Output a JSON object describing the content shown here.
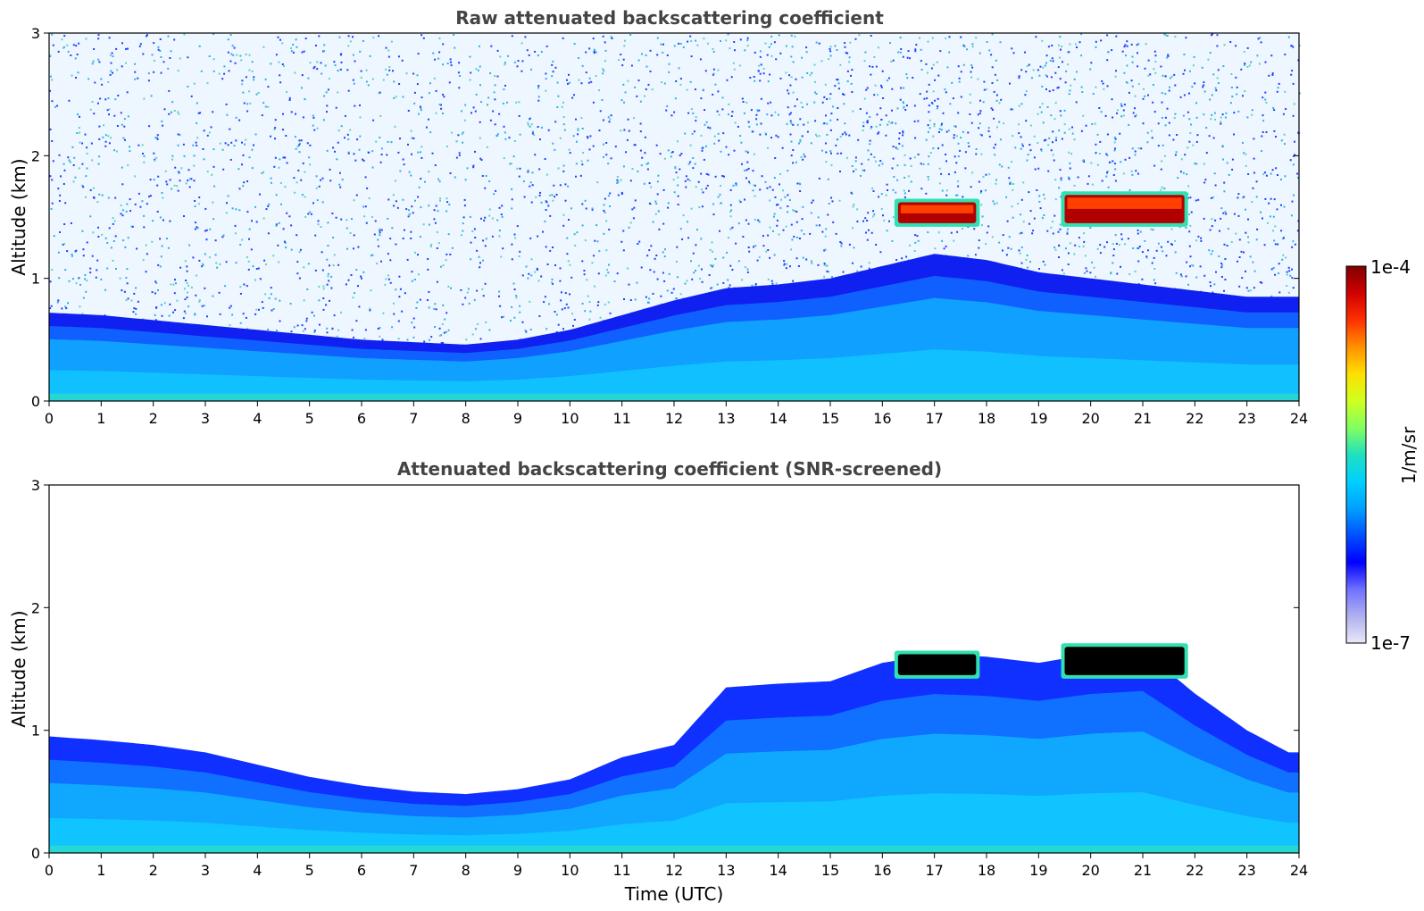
{
  "chart_data": [
    {
      "type": "heatmap",
      "title": "Raw attenuated backscattering coefficient",
      "xlabel": "",
      "ylabel": "Altitude (km)",
      "xlim": [
        0,
        24
      ],
      "ylim": [
        0,
        3
      ],
      "x_ticks": [
        "0",
        "1",
        "2",
        "3",
        "4",
        "5",
        "6",
        "7",
        "8",
        "9",
        "10",
        "11",
        "12",
        "13",
        "14",
        "15",
        "16",
        "17",
        "18",
        "19",
        "20",
        "21",
        "22",
        "23",
        "24"
      ],
      "y_ticks": [
        "0",
        "1",
        "2",
        "3"
      ],
      "boundary_layer_top_km": [
        [
          0,
          0.72
        ],
        [
          1,
          0.7
        ],
        [
          2,
          0.66
        ],
        [
          3,
          0.62
        ],
        [
          4,
          0.58
        ],
        [
          5,
          0.54
        ],
        [
          6,
          0.5
        ],
        [
          7,
          0.48
        ],
        [
          8,
          0.46
        ],
        [
          9,
          0.5
        ],
        [
          10,
          0.58
        ],
        [
          11,
          0.7
        ],
        [
          12,
          0.82
        ],
        [
          13,
          0.92
        ],
        [
          14,
          0.95
        ],
        [
          15,
          1.0
        ],
        [
          16,
          1.1
        ],
        [
          17,
          1.2
        ],
        [
          18,
          1.15
        ],
        [
          19,
          1.05
        ],
        [
          20,
          1.0
        ],
        [
          21,
          0.95
        ],
        [
          22,
          0.9
        ],
        [
          23,
          0.85
        ],
        [
          24,
          0.85
        ]
      ],
      "cloud_layers": [
        {
          "x_start": 16.3,
          "x_end": 17.8,
          "alt_bottom_km": 1.45,
          "alt_top_km": 1.62
        },
        {
          "x_start": 19.5,
          "x_end": 21.8,
          "alt_bottom_km": 1.45,
          "alt_top_km": 1.68
        }
      ]
    },
    {
      "type": "heatmap",
      "title": "Attenuated backscattering coefficient (SNR-screened)",
      "xlabel": "Time (UTC)",
      "ylabel": "Altitude (km)",
      "xlim": [
        0,
        24
      ],
      "ylim": [
        0,
        3
      ],
      "x_ticks": [
        "0",
        "1",
        "2",
        "3",
        "4",
        "5",
        "6",
        "7",
        "8",
        "9",
        "10",
        "11",
        "12",
        "13",
        "14",
        "15",
        "16",
        "17",
        "18",
        "19",
        "20",
        "21",
        "22",
        "23",
        "24"
      ],
      "y_ticks": [
        "0",
        "1",
        "2",
        "3"
      ],
      "valid_signal_top_km": [
        [
          0,
          0.95
        ],
        [
          1,
          0.92
        ],
        [
          2,
          0.88
        ],
        [
          3,
          0.82
        ],
        [
          4,
          0.72
        ],
        [
          5,
          0.62
        ],
        [
          6,
          0.55
        ],
        [
          7,
          0.5
        ],
        [
          8,
          0.48
        ],
        [
          9,
          0.52
        ],
        [
          10,
          0.6
        ],
        [
          11,
          0.78
        ],
        [
          12,
          0.88
        ],
        [
          13,
          1.35
        ],
        [
          14,
          1.38
        ],
        [
          15,
          1.4
        ],
        [
          16,
          1.55
        ],
        [
          17,
          1.62
        ],
        [
          18,
          1.6
        ],
        [
          19,
          1.55
        ],
        [
          20,
          1.62
        ],
        [
          21,
          1.65
        ],
        [
          22,
          1.3
        ],
        [
          23,
          1.0
        ],
        [
          23.8,
          0.82
        ]
      ],
      "cloud_layers": [
        {
          "x_start": 16.3,
          "x_end": 17.8,
          "alt_bottom_km": 1.45,
          "alt_top_km": 1.62
        },
        {
          "x_start": 19.5,
          "x_end": 21.8,
          "alt_bottom_km": 1.45,
          "alt_top_km": 1.68
        }
      ]
    }
  ],
  "colorbar": {
    "label": "1/m/sr",
    "max_label": "1e-4",
    "min_label": "1e-7",
    "colors": [
      "#e8e8f8",
      "#b0b0f0",
      "#7070ff",
      "#0000ff",
      "#0050ff",
      "#00a0ff",
      "#00d0ff",
      "#20e0c0",
      "#80ff60",
      "#d0ff20",
      "#ffe000",
      "#ff9000",
      "#ff3000",
      "#d00000",
      "#800000"
    ]
  }
}
